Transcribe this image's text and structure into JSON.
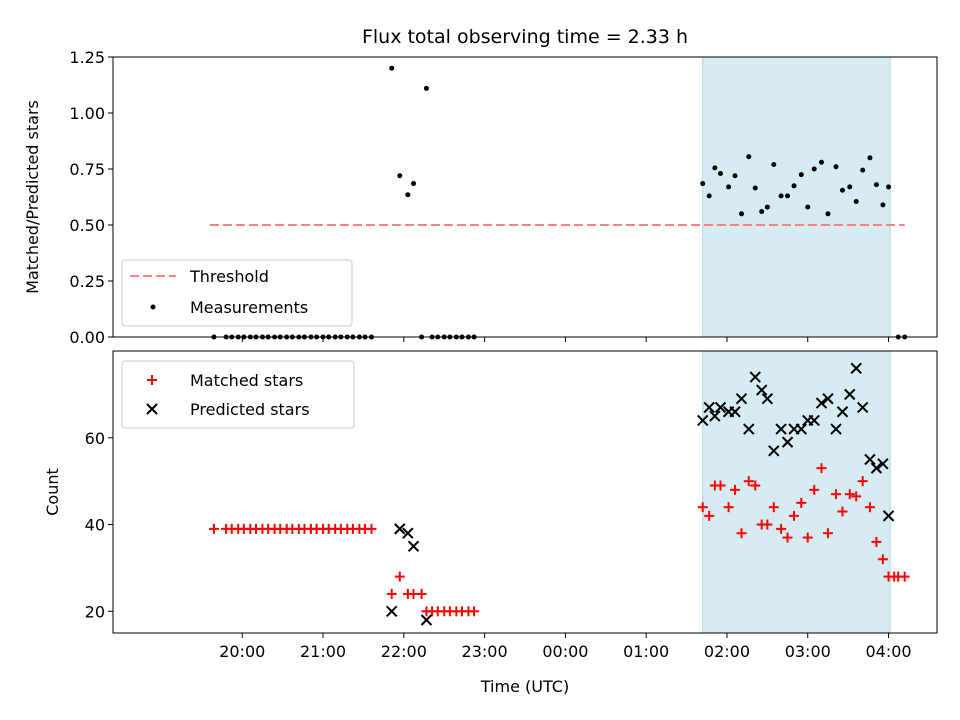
{
  "chart_data": {
    "type": "scatter",
    "title": "Flux total observing time = 2.33 h",
    "xlabel": "Time (UTC)",
    "x_unit": "hours since 00:00 UTC (negative = previous evening)",
    "xlim": [
      -5.6,
      4.6
    ],
    "x_ticks": [
      -4,
      -3,
      -2,
      -1,
      0,
      1,
      2,
      3,
      4
    ],
    "x_tick_labels": [
      "20:00",
      "21:00",
      "22:00",
      "23:00",
      "00:00",
      "01:00",
      "02:00",
      "03:00",
      "04:00"
    ],
    "highlight_span": {
      "x0": 1.7,
      "x1": 4.02,
      "color": "#add8e6"
    },
    "top": {
      "ylabel": "Matched/Predicted stars",
      "ylim": [
        0,
        1.25
      ],
      "y_ticks": [
        0,
        0.25,
        0.5,
        0.75,
        1.0,
        1.25
      ],
      "y_tick_labels": [
        "0.00",
        "0.25",
        "0.50",
        "0.75",
        "1.00",
        "1.25"
      ],
      "legend": {
        "placement": "lower-left",
        "threshold_label": "Threshold",
        "measurements_label": "Measurements"
      },
      "threshold": {
        "value": 0.5,
        "x0": -4.4,
        "x1": 4.2,
        "color": "#ff8080"
      },
      "measurements": [
        [
          -4.35,
          0
        ],
        [
          -4.2,
          0
        ],
        [
          -4.13,
          0
        ],
        [
          -4.05,
          0
        ],
        [
          -3.98,
          0
        ],
        [
          -3.9,
          0
        ],
        [
          -3.83,
          0
        ],
        [
          -3.75,
          0
        ],
        [
          -3.68,
          0
        ],
        [
          -3.6,
          0
        ],
        [
          -3.53,
          0
        ],
        [
          -3.45,
          0
        ],
        [
          -3.38,
          0
        ],
        [
          -3.3,
          0
        ],
        [
          -3.23,
          0
        ],
        [
          -3.15,
          0
        ],
        [
          -3.08,
          0
        ],
        [
          -3.0,
          0
        ],
        [
          -2.93,
          0
        ],
        [
          -2.85,
          0
        ],
        [
          -2.78,
          0
        ],
        [
          -2.7,
          0
        ],
        [
          -2.63,
          0
        ],
        [
          -2.55,
          0
        ],
        [
          -2.48,
          0
        ],
        [
          -2.4,
          0
        ],
        [
          -2.15,
          1.2
        ],
        [
          -2.05,
          0.72
        ],
        [
          -1.95,
          0.635
        ],
        [
          -1.88,
          0.685
        ],
        [
          -1.78,
          0.0
        ],
        [
          -1.72,
          1.11
        ],
        [
          -1.65,
          0
        ],
        [
          -1.58,
          0
        ],
        [
          -1.5,
          0
        ],
        [
          -1.43,
          0
        ],
        [
          -1.35,
          0
        ],
        [
          -1.28,
          0
        ],
        [
          -1.2,
          0
        ],
        [
          -1.13,
          0
        ],
        [
          1.7,
          0.685
        ],
        [
          1.78,
          0.63
        ],
        [
          1.85,
          0.755
        ],
        [
          1.92,
          0.73
        ],
        [
          2.02,
          0.67
        ],
        [
          2.1,
          0.72
        ],
        [
          2.18,
          0.55
        ],
        [
          2.27,
          0.805
        ],
        [
          2.35,
          0.665
        ],
        [
          2.43,
          0.56
        ],
        [
          2.5,
          0.58
        ],
        [
          2.58,
          0.77
        ],
        [
          2.67,
          0.63
        ],
        [
          2.75,
          0.63
        ],
        [
          2.83,
          0.675
        ],
        [
          2.92,
          0.725
        ],
        [
          3.0,
          0.58
        ],
        [
          3.08,
          0.75
        ],
        [
          3.17,
          0.78
        ],
        [
          3.25,
          0.55
        ],
        [
          3.35,
          0.76
        ],
        [
          3.43,
          0.655
        ],
        [
          3.52,
          0.67
        ],
        [
          3.6,
          0.605
        ],
        [
          3.68,
          0.745
        ],
        [
          3.77,
          0.8
        ],
        [
          3.85,
          0.68
        ],
        [
          3.93,
          0.59
        ],
        [
          4.0,
          0.67
        ],
        [
          4.12,
          0
        ],
        [
          4.2,
          0
        ]
      ]
    },
    "bottom": {
      "ylabel": "Count",
      "ylim": [
        15,
        80
      ],
      "y_ticks": [
        20,
        40,
        60
      ],
      "y_tick_labels": [
        "20",
        "40",
        "60"
      ],
      "legend": {
        "placement": "upper-left",
        "matched_label": "Matched stars",
        "predicted_label": "Predicted stars"
      },
      "matched": [
        [
          -4.35,
          39
        ],
        [
          -4.2,
          39
        ],
        [
          -4.13,
          39
        ],
        [
          -4.05,
          39
        ],
        [
          -3.98,
          39
        ],
        [
          -3.9,
          39
        ],
        [
          -3.83,
          39
        ],
        [
          -3.75,
          39
        ],
        [
          -3.68,
          39
        ],
        [
          -3.6,
          39
        ],
        [
          -3.53,
          39
        ],
        [
          -3.45,
          39
        ],
        [
          -3.38,
          39
        ],
        [
          -3.3,
          39
        ],
        [
          -3.23,
          39
        ],
        [
          -3.15,
          39
        ],
        [
          -3.08,
          39
        ],
        [
          -3.0,
          39
        ],
        [
          -2.93,
          39
        ],
        [
          -2.85,
          39
        ],
        [
          -2.78,
          39
        ],
        [
          -2.7,
          39
        ],
        [
          -2.63,
          39
        ],
        [
          -2.55,
          39
        ],
        [
          -2.48,
          39
        ],
        [
          -2.4,
          39
        ],
        [
          -2.15,
          24
        ],
        [
          -2.05,
          28
        ],
        [
          -1.95,
          24
        ],
        [
          -1.88,
          24
        ],
        [
          -1.78,
          24
        ],
        [
          -1.72,
          20
        ],
        [
          -1.65,
          20
        ],
        [
          -1.58,
          20
        ],
        [
          -1.5,
          20
        ],
        [
          -1.43,
          20
        ],
        [
          -1.35,
          20
        ],
        [
          -1.28,
          20
        ],
        [
          -1.2,
          20
        ],
        [
          -1.13,
          20
        ],
        [
          1.7,
          44
        ],
        [
          1.78,
          42
        ],
        [
          1.85,
          49
        ],
        [
          1.92,
          49
        ],
        [
          2.02,
          44
        ],
        [
          2.1,
          48
        ],
        [
          2.18,
          38
        ],
        [
          2.27,
          50
        ],
        [
          2.35,
          49
        ],
        [
          2.43,
          40
        ],
        [
          2.5,
          40
        ],
        [
          2.58,
          44
        ],
        [
          2.67,
          39
        ],
        [
          2.75,
          37
        ],
        [
          2.83,
          42
        ],
        [
          2.92,
          45
        ],
        [
          3.0,
          37
        ],
        [
          3.08,
          48
        ],
        [
          3.17,
          53
        ],
        [
          3.25,
          38
        ],
        [
          3.35,
          47
        ],
        [
          3.43,
          43
        ],
        [
          3.52,
          47
        ],
        [
          3.6,
          46.5
        ],
        [
          3.68,
          50
        ],
        [
          3.77,
          44
        ],
        [
          3.85,
          36
        ],
        [
          3.93,
          32
        ],
        [
          4.0,
          28
        ],
        [
          4.07,
          28
        ],
        [
          4.12,
          28
        ],
        [
          4.2,
          28
        ]
      ],
      "predicted": [
        [
          -2.15,
          20
        ],
        [
          -2.05,
          39
        ],
        [
          -1.95,
          38
        ],
        [
          -1.88,
          35
        ],
        [
          -1.72,
          18
        ],
        [
          1.7,
          64
        ],
        [
          1.78,
          67
        ],
        [
          1.85,
          65
        ],
        [
          1.92,
          67
        ],
        [
          2.02,
          66
        ],
        [
          2.1,
          66
        ],
        [
          2.18,
          69
        ],
        [
          2.27,
          62
        ],
        [
          2.35,
          74
        ],
        [
          2.43,
          71
        ],
        [
          2.5,
          69
        ],
        [
          2.58,
          57
        ],
        [
          2.67,
          62
        ],
        [
          2.75,
          59
        ],
        [
          2.83,
          62
        ],
        [
          2.92,
          62
        ],
        [
          3.0,
          64
        ],
        [
          3.08,
          64
        ],
        [
          3.17,
          68
        ],
        [
          3.25,
          69
        ],
        [
          3.35,
          62
        ],
        [
          3.43,
          66
        ],
        [
          3.52,
          70
        ],
        [
          3.6,
          76
        ],
        [
          3.68,
          67
        ],
        [
          3.77,
          55
        ],
        [
          3.85,
          53
        ],
        [
          3.93,
          54
        ],
        [
          4.0,
          42
        ]
      ]
    }
  }
}
